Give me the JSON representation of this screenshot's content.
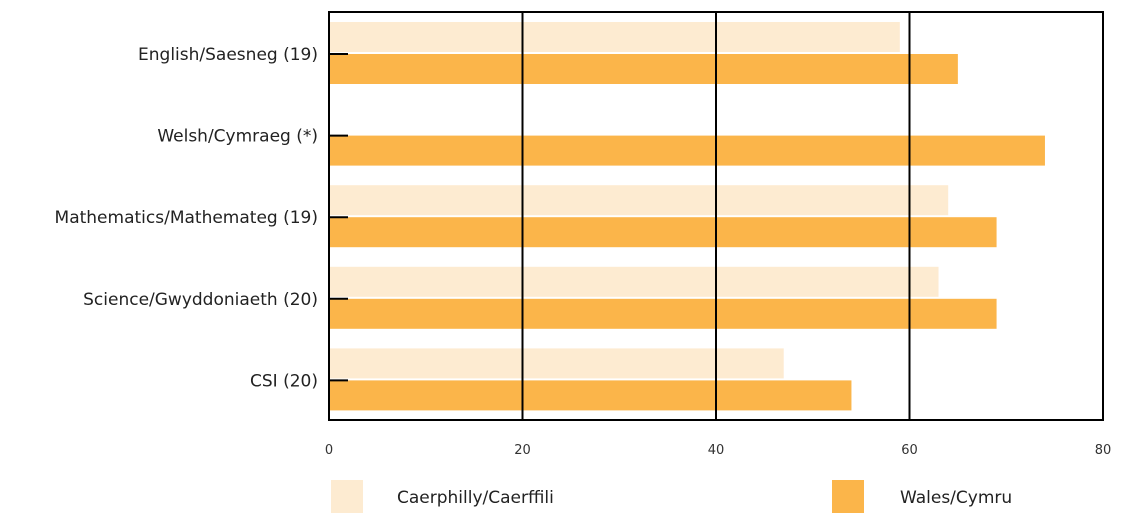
{
  "chart_data": {
    "type": "bar",
    "orientation": "horizontal",
    "categories": [
      "English/Saesneg (19)",
      "Welsh/Cymraeg (*)",
      "Mathematics/Mathemateg (19)",
      "Science/Gwyddoniaeth (20)",
      "CSI (20)"
    ],
    "series": [
      {
        "name": "Caerphilly/Caerffili",
        "color": "#fdebd1",
        "values": [
          59,
          null,
          64,
          63,
          47
        ]
      },
      {
        "name": "Wales/Cymru",
        "color": "#fbb54a",
        "values": [
          65,
          74,
          69,
          69,
          54
        ]
      }
    ],
    "xlim": [
      0,
      80
    ],
    "xticks": [
      "0",
      "20",
      "40",
      "60",
      "80"
    ],
    "grid": "vertical lines at 20, 40, 60",
    "legend_position": "bottom"
  }
}
